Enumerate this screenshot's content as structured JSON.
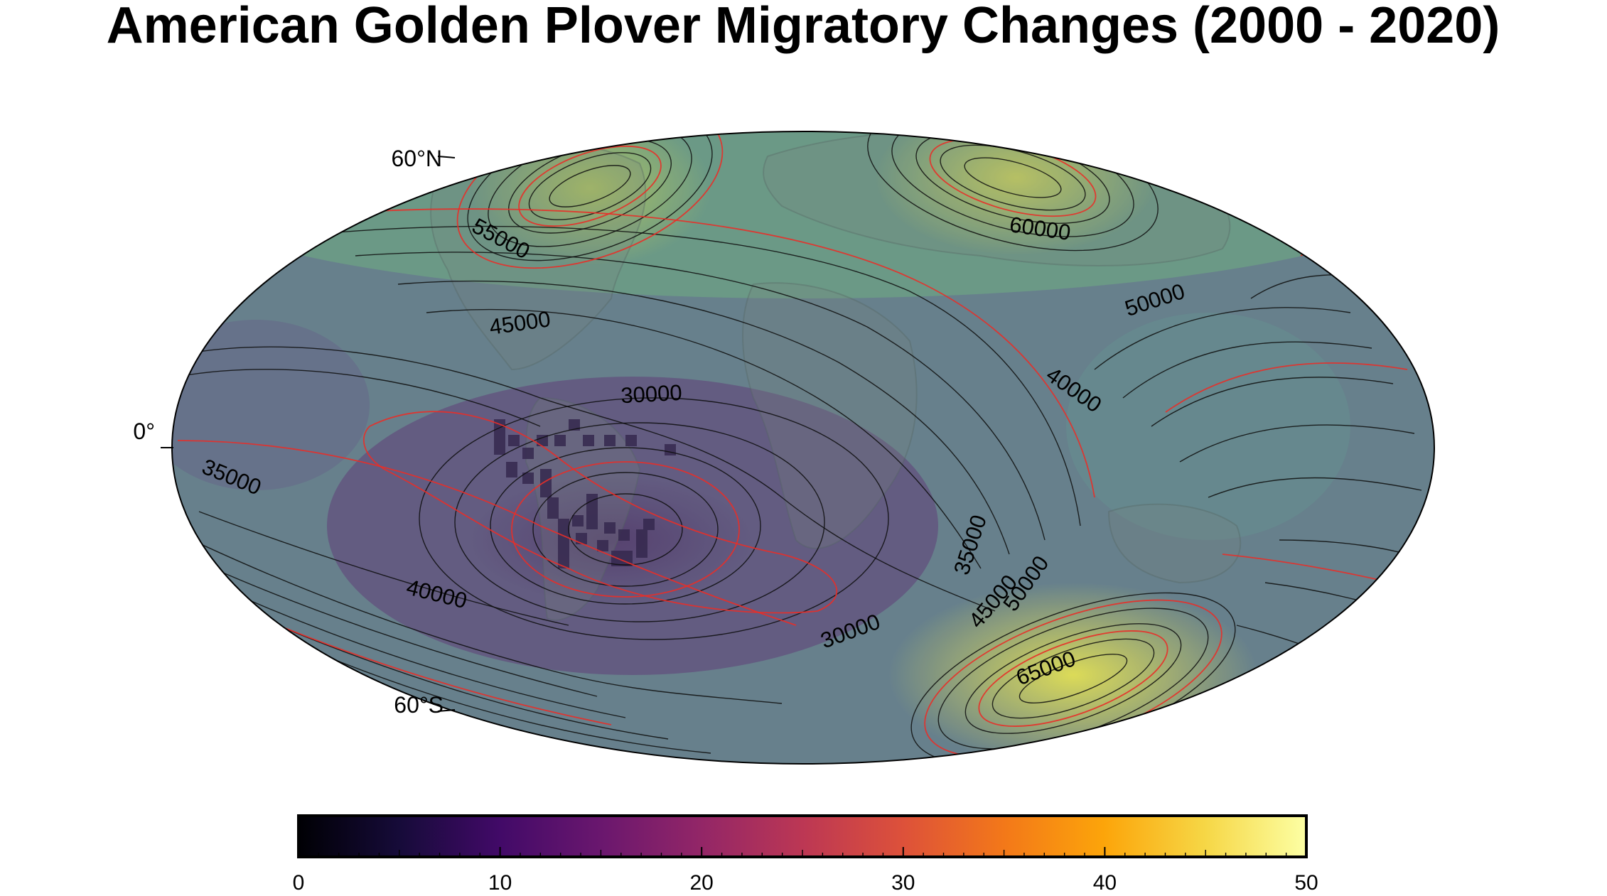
{
  "title": "American Golden Plover Migratory Changes (2000 - 2020)",
  "graticule_labels": {
    "lat_60n": "60°N",
    "lat_0": "0°",
    "lat_60s": "60°S"
  },
  "contour_labels": [
    {
      "text": "55000"
    },
    {
      "text": "45000"
    },
    {
      "text": "60000"
    },
    {
      "text": "50000"
    },
    {
      "text": "40000"
    },
    {
      "text": "30000"
    },
    {
      "text": "35000"
    },
    {
      "text": "40000"
    },
    {
      "text": "35000"
    },
    {
      "text": "45000"
    },
    {
      "text": "50000"
    },
    {
      "text": "30000"
    },
    {
      "text": "65000"
    }
  ],
  "colorbar": {
    "min": 0,
    "max": 50,
    "ticks": [
      "0",
      "10",
      "20",
      "30",
      "40",
      "50"
    ],
    "colormap": "inferno"
  },
  "colors": {
    "contour_minor": "#000000",
    "contour_major": "#e8231d",
    "low_field": "#574574",
    "high_field": "#d3d94e"
  }
}
